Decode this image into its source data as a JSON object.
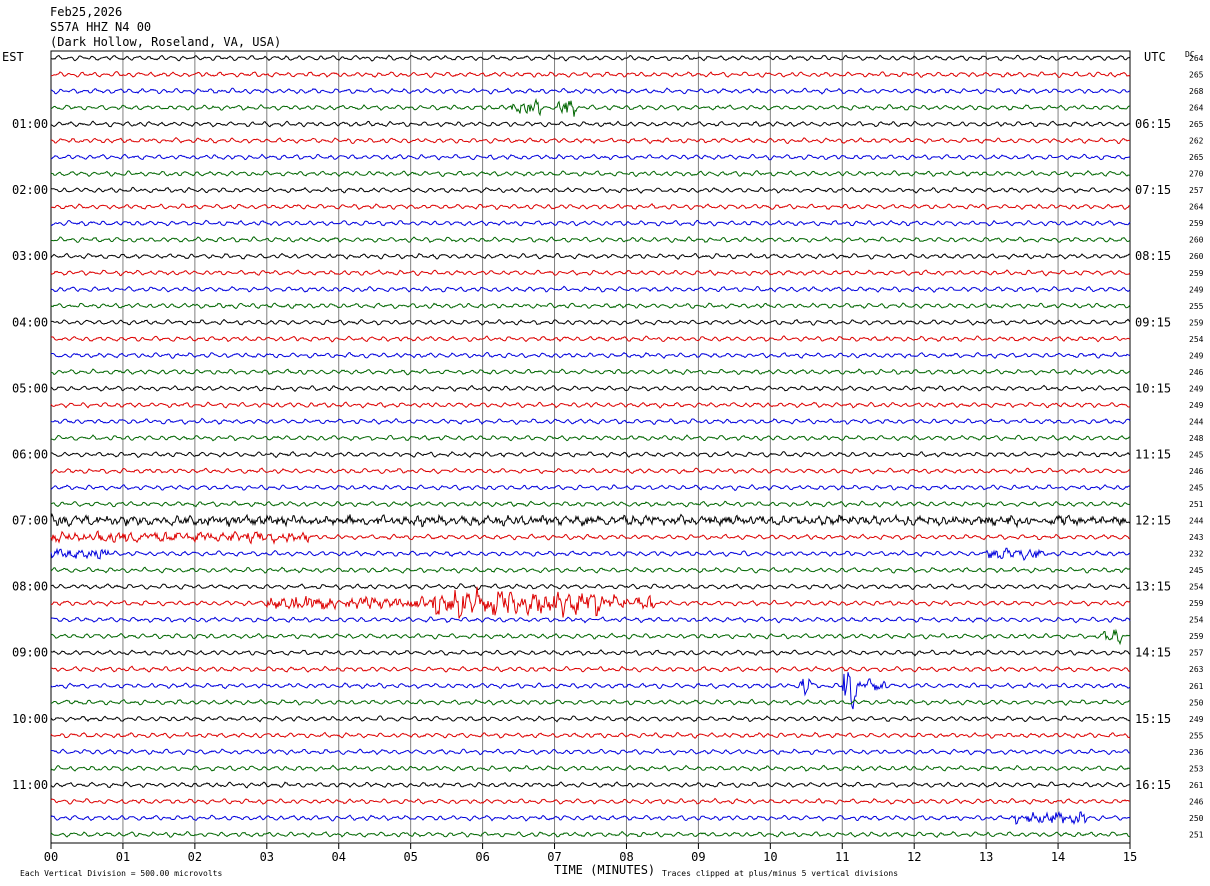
{
  "header": {
    "date": "Feb25,2026",
    "station": "S57A HHZ N4 00",
    "location": "(Dark Hollow, Roseland, VA, USA)",
    "left_tz": "EST",
    "right_tz": "UTC",
    "dc_label": "DC"
  },
  "footer": {
    "vertical_division": "Each Vertical Division =  500.00 microvolts",
    "xlabel": "TIME (MINUTES)",
    "clip_note": "Traces clipped at plus/minus 5 vertical divisions"
  },
  "colors": {
    "trace_cycle": [
      "#000000",
      "#dd0000",
      "#0000dd",
      "#006600"
    ],
    "grid": "#808080"
  },
  "chart_data": {
    "type": "line",
    "title": "",
    "xlabel": "TIME (MINUTES)",
    "ylabel": "",
    "xlim": [
      0,
      15
    ],
    "x_ticks": [
      "00",
      "01",
      "02",
      "03",
      "04",
      "05",
      "06",
      "07",
      "08",
      "09",
      "10",
      "11",
      "12",
      "13",
      "14",
      "15"
    ],
    "grid": true,
    "left_hour_labels": [
      "01:00",
      "02:00",
      "03:00",
      "04:00",
      "05:00",
      "06:00",
      "07:00",
      "08:00",
      "09:00",
      "10:00",
      "11:00"
    ],
    "right_hour_labels": [
      "06:15",
      "07:15",
      "08:15",
      "09:15",
      "10:15",
      "11:15",
      "12:15",
      "13:15",
      "14:15",
      "15:15",
      "16:15"
    ],
    "dc_offsets": [
      "264",
      "265",
      "268",
      "264",
      "265",
      "262",
      "265",
      "270",
      "257",
      "264",
      "259",
      "260",
      "260",
      "259",
      "249",
      "255",
      "259",
      "254",
      "249",
      "246",
      "249",
      "249",
      "244",
      "248",
      "245",
      "246",
      "245",
      "251",
      "244",
      "243",
      "232",
      "245",
      "254",
      "259",
      "254",
      "259",
      "257",
      "263",
      "261",
      "250",
      "249",
      "255",
      "236",
      "253",
      "261",
      "246",
      "250",
      "251"
    ],
    "bursts": [
      {
        "row": 3,
        "start_min": 6.4,
        "end_min": 6.8,
        "amp": 2.2
      },
      {
        "row": 3,
        "start_min": 7.0,
        "end_min": 7.3,
        "amp": 2.6
      },
      {
        "row": 28,
        "start_min": 0.0,
        "end_min": 15.0,
        "amp": 1.5
      },
      {
        "row": 29,
        "start_min": 0.0,
        "end_min": 3.6,
        "amp": 1.6
      },
      {
        "row": 30,
        "start_min": 0.0,
        "end_min": 0.8,
        "amp": 1.6
      },
      {
        "row": 30,
        "start_min": 13.0,
        "end_min": 13.8,
        "amp": 1.6
      },
      {
        "row": 33,
        "start_min": 3.0,
        "end_min": 4.0,
        "amp": 2.2
      },
      {
        "row": 33,
        "start_min": 4.1,
        "end_min": 5.3,
        "amp": 2.0
      },
      {
        "row": 33,
        "start_min": 5.3,
        "end_min": 6.3,
        "amp": 4.2
      },
      {
        "row": 33,
        "start_min": 6.3,
        "end_min": 7.6,
        "amp": 4.0
      },
      {
        "row": 33,
        "start_min": 7.6,
        "end_min": 8.4,
        "amp": 2.4
      },
      {
        "row": 35,
        "start_min": 14.6,
        "end_min": 14.9,
        "amp": 2.2
      },
      {
        "row": 38,
        "start_min": 10.4,
        "end_min": 10.6,
        "amp": 4.0
      },
      {
        "row": 38,
        "start_min": 11.0,
        "end_min": 11.2,
        "amp": 6.0
      },
      {
        "row": 38,
        "start_min": 11.2,
        "end_min": 11.6,
        "amp": 2.0
      },
      {
        "row": 46,
        "start_min": 13.4,
        "end_min": 14.4,
        "amp": 1.8
      }
    ]
  }
}
